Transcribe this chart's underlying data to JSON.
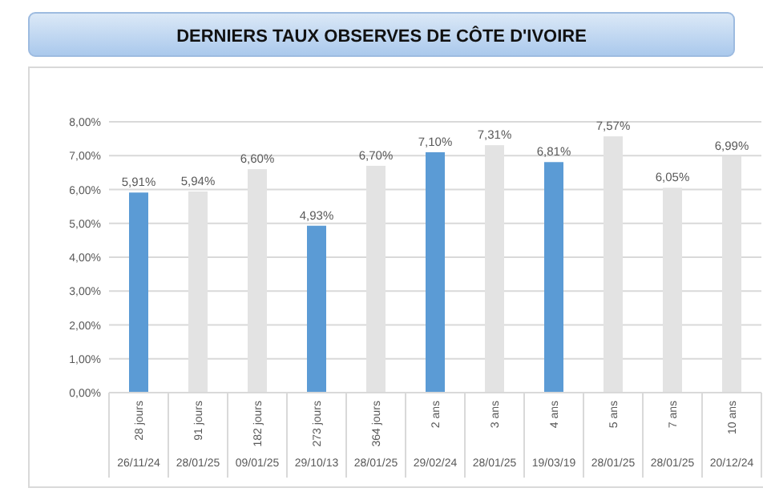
{
  "chart_data": {
    "type": "bar",
    "title": "DERNIERS TAUX OBSERVES DE CÔTE D'IVOIRE",
    "categories": [
      "28 jours",
      "91 jours",
      "182 jours",
      "273 jours",
      "364 jours",
      "2 ans",
      "3 ans",
      "4 ans",
      "5 ans",
      "7 ans",
      "10 ans"
    ],
    "values": [
      5.91,
      5.94,
      6.6,
      4.93,
      6.7,
      7.1,
      7.31,
      6.81,
      7.57,
      6.05,
      6.99
    ],
    "colors": [
      "#5b9bd5",
      "#e3e3e3",
      "#e3e3e3",
      "#5b9bd5",
      "#e3e3e3",
      "#5b9bd5",
      "#e3e3e3",
      "#5b9bd5",
      "#e3e3e3",
      "#e3e3e3",
      "#e3e3e3"
    ],
    "value_labels": [
      "5,91%",
      "5,94%",
      "6,60%",
      "4,93%",
      "6,70%",
      "7,10%",
      "7,31%",
      "6,81%",
      "7,57%",
      "6,05%",
      "6,99%"
    ],
    "ylim": [
      0,
      8
    ],
    "yticks": [
      {
        "value": 0,
        "label": "0,00%"
      },
      {
        "value": 1,
        "label": "1,00%"
      },
      {
        "value": 2,
        "label": "2,00%"
      },
      {
        "value": 3,
        "label": "3,00%"
      },
      {
        "value": 4,
        "label": "4,00%"
      },
      {
        "value": 5,
        "label": "5,00%"
      },
      {
        "value": 6,
        "label": "6,00%"
      },
      {
        "value": 7,
        "label": "7,00%"
      },
      {
        "value": 8,
        "label": "8,00%"
      }
    ],
    "grid": "y",
    "annotations": [
      "26/11/24",
      "28/01/25",
      "09/01/25",
      "29/10/13",
      "28/01/25",
      "29/02/24",
      "28/01/25",
      "19/03/19",
      "28/01/25",
      "28/01/25",
      "20/12/24"
    ]
  }
}
